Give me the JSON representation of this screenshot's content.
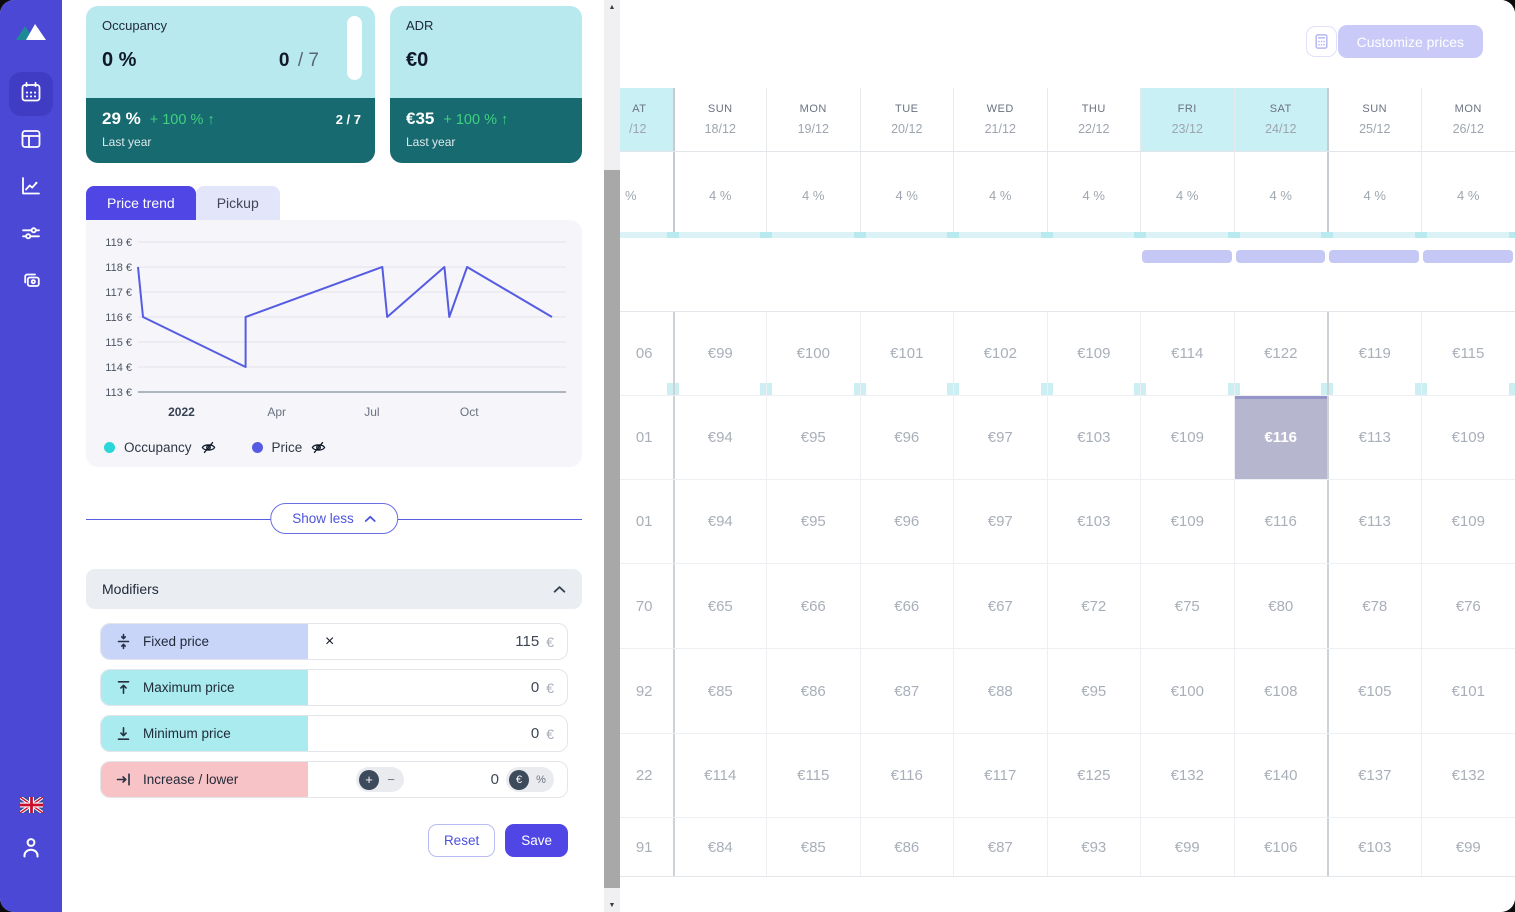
{
  "colors": {
    "accent": "#4F46E5",
    "sidebar": "#4B48D6",
    "card_light_teal": "#B7E9EE",
    "card_dark_teal": "#186A71",
    "positive_green": "#3ED17E",
    "weekend_bg": "#C9F0F4",
    "selected_cell_bg": "#B6B6CF",
    "period_bar": "#C5C8F4",
    "occupancy_series": "#2BD6DB",
    "price_series": "#565CE2"
  },
  "sidebar": {
    "nav_items": [
      {
        "icon": "calendar-icon",
        "active": true
      },
      {
        "icon": "layout-icon",
        "active": false
      },
      {
        "icon": "analytics-icon",
        "active": false
      },
      {
        "icon": "sliders-icon",
        "active": false
      },
      {
        "icon": "copies-icon",
        "active": false
      }
    ],
    "language_flag": "uk-flag",
    "account_icon": "user-icon"
  },
  "panel": {
    "cards": [
      {
        "title": "Occupancy",
        "value": "0 %",
        "count": "0",
        "count_total": "/ 7",
        "last_year_value": "29 %",
        "last_year_delta": "+ 100 % ↑",
        "last_year_count": "2 / 7",
        "last_year_label": "Last year"
      },
      {
        "title": "ADR",
        "value": "€0",
        "last_year_value": "€35",
        "last_year_delta": "+ 100 % ↑",
        "last_year_label": "Last year"
      }
    ],
    "tabs": [
      {
        "label": "Price trend",
        "active": true
      },
      {
        "label": "Pickup",
        "active": false
      }
    ],
    "chart_data": {
      "type": "line",
      "title": "",
      "xlabel": "",
      "ylabel": "",
      "ylim": [
        113,
        119
      ],
      "y_ticks": [
        "119 €",
        "118 €",
        "117 €",
        "116 €",
        "115 €",
        "114 €",
        "113 €"
      ],
      "x_ticks": [
        {
          "label": "2022",
          "pos": 0.105,
          "bold": true
        },
        {
          "label": "Apr",
          "pos": 0.335,
          "bold": false
        },
        {
          "label": "Jul",
          "pos": 0.565,
          "bold": false
        },
        {
          "label": "Oct",
          "pos": 0.8,
          "bold": false
        }
      ],
      "grid": true,
      "legend_position": "bottom-left",
      "series": [
        {
          "name": "Price",
          "color": "#565CE2",
          "points": [
            [
              0,
              118
            ],
            [
              0.012,
              116
            ],
            [
              0.26,
              114
            ],
            [
              0.26,
              116
            ],
            [
              0.59,
              118
            ],
            [
              0.602,
              116
            ],
            [
              0.74,
              118
            ],
            [
              0.752,
              116
            ],
            [
              0.795,
              118
            ],
            [
              1,
              116
            ]
          ]
        }
      ]
    },
    "legend": [
      {
        "label": "Occupancy",
        "color": "#2BD6DB",
        "visibility_icon": "eye-off-icon"
      },
      {
        "label": "Price",
        "color": "#565CE2",
        "visibility_icon": "eye-off-icon"
      }
    ],
    "show_less_label": "Show less",
    "modifiers": {
      "title": "Modifiers",
      "rows": [
        {
          "label": "Fixed price",
          "icon": "align-center-vertical-icon",
          "style": "blue",
          "clear": true,
          "value": "115",
          "unit": "€"
        },
        {
          "label": "Maximum price",
          "icon": "arrow-up-to-line-icon",
          "style": "teal",
          "value": "0",
          "unit": "€"
        },
        {
          "label": "Minimum price",
          "icon": "arrow-down-to-line-icon",
          "style": "teal",
          "value": "0",
          "unit": "€"
        },
        {
          "label": "Increase / lower",
          "icon": "arrow-right-to-line-icon",
          "style": "pink",
          "value": "0",
          "stepper": {
            "options": [
              "+",
              "−"
            ],
            "active": "+"
          },
          "unit_toggle": {
            "options": [
              "€",
              "%"
            ],
            "active": "€"
          }
        }
      ],
      "reset_label": "Reset",
      "save_label": "Save"
    }
  },
  "calendar": {
    "customize_button_label": "Customize prices",
    "calc_icon": "calculator-icon",
    "columns": [
      {
        "day": "AT",
        "date": "/12",
        "weekend": true,
        "partial": true
      },
      {
        "day": "SUN",
        "date": "18/12",
        "week_start": true
      },
      {
        "day": "MON",
        "date": "19/12"
      },
      {
        "day": "TUE",
        "date": "20/12"
      },
      {
        "day": "WED",
        "date": "21/12"
      },
      {
        "day": "THU",
        "date": "22/12"
      },
      {
        "day": "FRI",
        "date": "23/12",
        "weekend": true
      },
      {
        "day": "SAT",
        "date": "24/12",
        "weekend": true
      },
      {
        "day": "SUN",
        "date": "25/12",
        "week_start": true
      },
      {
        "day": "MON",
        "date": "26/12"
      }
    ],
    "adjustment_row": [
      "%",
      "4 %",
      "4 %",
      "4 %",
      "4 %",
      "4 %",
      "4 %",
      "4 %",
      "4 %",
      "4 %"
    ],
    "period_bar_columns": [
      6,
      7,
      8,
      9
    ],
    "price_rows": [
      [
        "06",
        "€99",
        "€100",
        "€101",
        "€102",
        "€109",
        "€114",
        "€122",
        "€119",
        "€115"
      ],
      [
        "01",
        "€94",
        "€95",
        "€96",
        "€97",
        "€103",
        "€109",
        "€116",
        "€113",
        "€109"
      ],
      [
        "01",
        "€94",
        "€95",
        "€96",
        "€97",
        "€103",
        "€109",
        "€116",
        "€113",
        "€109"
      ],
      [
        "70",
        "€65",
        "€66",
        "€66",
        "€67",
        "€72",
        "€75",
        "€80",
        "€78",
        "€76"
      ],
      [
        "92",
        "€85",
        "€86",
        "€87",
        "€88",
        "€95",
        "€100",
        "€108",
        "€105",
        "€101"
      ],
      [
        "22",
        "€114",
        "€115",
        "€116",
        "€117",
        "€125",
        "€132",
        "€140",
        "€137",
        "€132"
      ],
      [
        "91",
        "€84",
        "€85",
        "€86",
        "€87",
        "€93",
        "€99",
        "€106",
        "€103",
        "€99"
      ]
    ],
    "selected_cell": {
      "row": 1,
      "col": 7
    }
  }
}
